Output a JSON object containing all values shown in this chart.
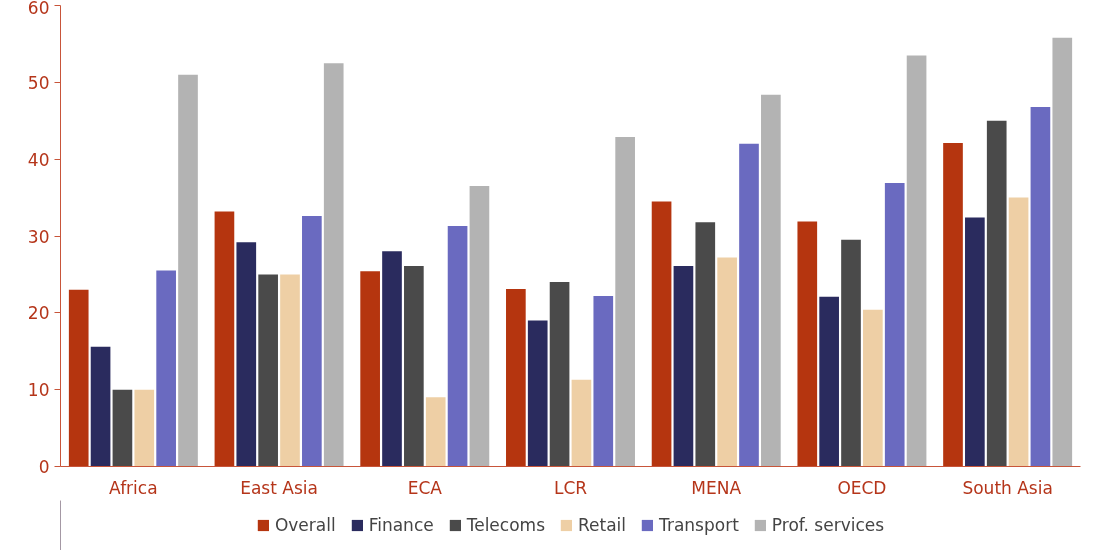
{
  "chart_data": {
    "type": "bar",
    "categories": [
      "Africa",
      "East Asia",
      "ECA",
      "LCR",
      "MENA",
      "OECD",
      "South Asia"
    ],
    "series": [
      {
        "name": "Overall",
        "color": "#b5350f",
        "values": [
          23,
          33.2,
          25.4,
          23.1,
          34.5,
          31.9,
          42.1
        ]
      },
      {
        "name": "Finance",
        "color": "#2a2b5e",
        "values": [
          15.6,
          29.2,
          28,
          19,
          26.1,
          22.1,
          32.4
        ]
      },
      {
        "name": "Telecoms",
        "color": "#4a4a4a",
        "values": [
          10,
          25,
          26.1,
          24,
          31.8,
          29.5,
          45
        ]
      },
      {
        "name": "Retail",
        "color": "#eecfa5",
        "values": [
          10,
          25,
          9,
          11.3,
          27.2,
          20.4,
          35
        ]
      },
      {
        "name": "Transport",
        "color": "#6a6ac0",
        "values": [
          25.5,
          32.6,
          31.3,
          22.2,
          42,
          36.9,
          46.8
        ]
      },
      {
        "name": "Prof. services",
        "color": "#b3b3b3",
        "values": [
          51,
          52.5,
          36.5,
          42.9,
          48.4,
          53.5,
          55.8
        ]
      }
    ],
    "ylim": [
      0,
      60
    ],
    "yticks": [
      0,
      10,
      20,
      30,
      40,
      50,
      60
    ],
    "grid": false,
    "legend": "bottom"
  }
}
